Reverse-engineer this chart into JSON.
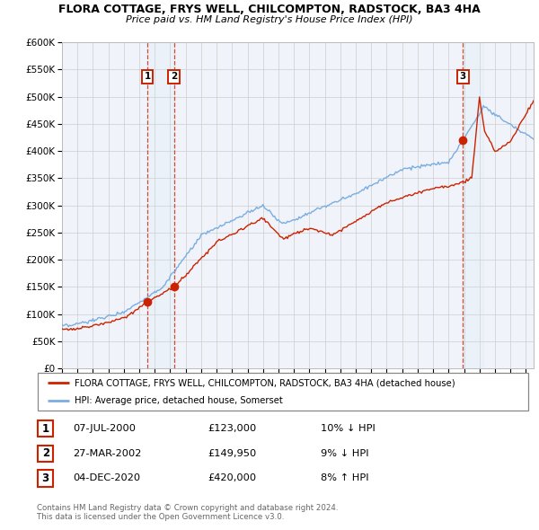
{
  "title": "FLORA COTTAGE, FRYS WELL, CHILCOMPTON, RADSTOCK, BA3 4HA",
  "subtitle": "Price paid vs. HM Land Registry's House Price Index (HPI)",
  "ylim": [
    0,
    600000
  ],
  "yticks": [
    0,
    50000,
    100000,
    150000,
    200000,
    250000,
    300000,
    350000,
    400000,
    450000,
    500000,
    550000,
    600000
  ],
  "x_start_year": 1995,
  "x_end_year": 2025,
  "sales": [
    {
      "label": "1",
      "date": "07-JUL-2000",
      "year": 2000.52,
      "price": 123000,
      "pct": "10%",
      "dir": "↓"
    },
    {
      "label": "2",
      "date": "27-MAR-2002",
      "year": 2002.24,
      "price": 149950,
      "pct": "9%",
      "dir": "↓"
    },
    {
      "label": "3",
      "date": "04-DEC-2020",
      "year": 2020.93,
      "price": 420000,
      "pct": "8%",
      "dir": "↑"
    }
  ],
  "legend_line1": "FLORA COTTAGE, FRYS WELL, CHILCOMPTON, RADSTOCK, BA3 4HA (detached house)",
  "legend_line2": "HPI: Average price, detached house, Somerset",
  "footer1": "Contains HM Land Registry data © Crown copyright and database right 2024.",
  "footer2": "This data is licensed under the Open Government Licence v3.0.",
  "hpi_color": "#7aade0",
  "price_color": "#cc2200",
  "plot_bg": "#f0f4fa",
  "grid_color": "#cccccc",
  "dashed_color": "#cc2200",
  "shade_color": "#d0e4f5"
}
